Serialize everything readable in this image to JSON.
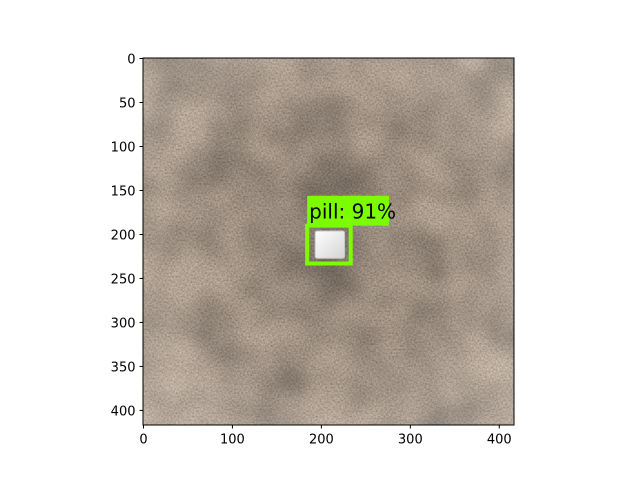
{
  "axes": {
    "x_ticks": [
      "0",
      "100",
      "200",
      "300",
      "400"
    ],
    "y_ticks": [
      "0",
      "50",
      "100",
      "150",
      "200",
      "250",
      "300",
      "350",
      "400"
    ],
    "xlim": [
      0,
      416
    ],
    "ylim": [
      416,
      0
    ]
  },
  "image": {
    "subject": "carpet-texture",
    "colors": {
      "base": "#6e5a4a",
      "dark": "#2f2721",
      "light": "#b8aa9a",
      "warm": "#8a6a4e"
    }
  },
  "detection": {
    "label": "pill: 91%",
    "box": {
      "x0": 184,
      "y0": 190,
      "x1": 233,
      "y1": 233
    },
    "label_box": {
      "x0": 184,
      "y0": 156,
      "x1": 276,
      "y1": 190
    },
    "pill": {
      "x0": 193,
      "y0": 196,
      "x1": 226,
      "y1": 227
    },
    "color": "#7cfc00"
  }
}
